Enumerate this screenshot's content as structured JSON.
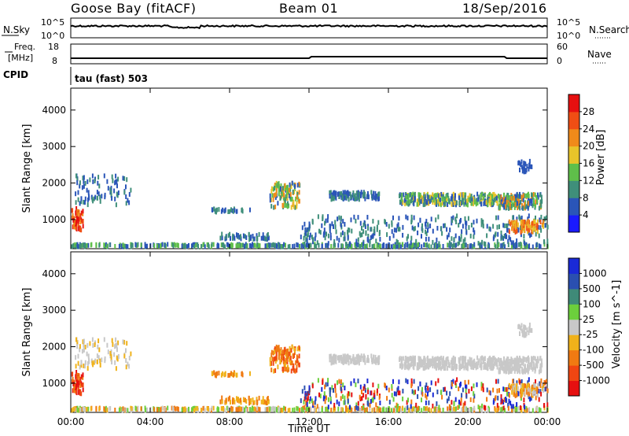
{
  "header": {
    "site": "Goose Bay (fitACF)",
    "beam": "Beam 01",
    "date": "18/Sep/2016"
  },
  "top_panels": {
    "nsky_label": "N.Sky",
    "nsearch_label": "N.Search",
    "nsky_ticks": [
      "10^5",
      "10^0"
    ],
    "nsearch_ticks": [
      "10^5",
      "10^0"
    ],
    "freq_label_1": "Freq.",
    "freq_label_2": "[MHz]",
    "freq_ticks": [
      "18",
      "8"
    ],
    "nave_label": "Nave",
    "nave_ticks": [
      "60",
      "0"
    ],
    "cpid_label": "CPID",
    "cpid_text": "tau (fast) 503"
  },
  "chart_data": [
    {
      "type": "heatmap",
      "ylabel": "Slant Range [km]",
      "xlabel": "Time UT",
      "x_ticks": [
        "00:00",
        "04:00",
        "08:00",
        "12:00",
        "16:00",
        "20:00",
        "00:00"
      ],
      "y_ticks": [
        1000,
        2000,
        3000,
        4000
      ],
      "ylim": [
        200,
        4600
      ],
      "colorbar": {
        "label": "Power [dB]",
        "ticks": [
          4,
          8,
          12,
          16,
          20,
          24,
          28
        ],
        "colors": [
          "#1a1aff",
          "#2a55b8",
          "#3f8f7a",
          "#5fbf4a",
          "#e8c42a",
          "#f08a1a",
          "#f04e14",
          "#e61010"
        ]
      }
    },
    {
      "type": "heatmap",
      "ylabel": "Slant Range [km]",
      "xlabel": "Time UT",
      "x_ticks": [
        "00:00",
        "04:00",
        "08:00",
        "12:00",
        "16:00",
        "20:00",
        "00:00"
      ],
      "y_ticks": [
        1000,
        2000,
        3000,
        4000
      ],
      "ylim": [
        200,
        4600
      ],
      "colorbar": {
        "label": "Velocity [m s^-1]",
        "ticks": [
          "1000",
          "500",
          "100",
          "25",
          "-25",
          "-100",
          "-500",
          "-1000"
        ],
        "colors": [
          "#1a2ad6",
          "#2a4fb0",
          "#3f8a78",
          "#6ccf3c",
          "#c8c8c8",
          "#f0b21a",
          "#f07a12",
          "#f04612",
          "#e61010"
        ]
      }
    }
  ],
  "x_axis_title": "Time UT"
}
